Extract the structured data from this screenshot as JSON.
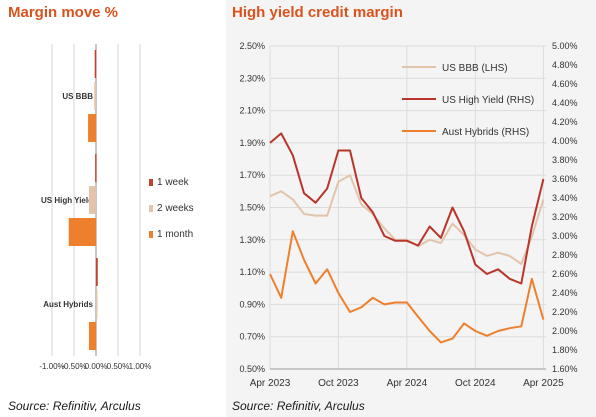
{
  "left": {
    "title": "Margin move %",
    "source": "Source: Refinitiv, Arculus"
  },
  "right": {
    "title": "High yield credit margin",
    "source": "Source: Refinitiv, Arculus"
  },
  "colors": {
    "title": "#d9531e",
    "one_week": "#c0432a",
    "two_weeks": "#e2c4aa",
    "one_month": "#ee7f2d",
    "us_bbb": "#e2c4aa",
    "us_high_yield": "#b8352a",
    "aust_hybrids": "#ee7f2d"
  },
  "chart_data": [
    {
      "type": "bar",
      "orientation": "horizontal",
      "title": "Margin move %",
      "categories": [
        "US BBB",
        "US High Yield",
        "Aust Hybrids"
      ],
      "series": [
        {
          "name": "1 week",
          "values": [
            -0.03,
            -0.02,
            0.04
          ]
        },
        {
          "name": "2 weeks",
          "values": [
            -0.04,
            -0.16,
            0.03
          ]
        },
        {
          "name": "1 month",
          "values": [
            -0.18,
            -0.62,
            -0.16
          ]
        }
      ],
      "xlim": [
        -1.0,
        1.0
      ],
      "xticks": [
        "-1.00%",
        "-0.50%",
        "0.00%",
        "0.50%",
        "1.00%"
      ],
      "grid": true,
      "legend": "right"
    },
    {
      "type": "line",
      "title": "High yield credit margin",
      "x_range": [
        "2023-04",
        "2025-04"
      ],
      "xticks": [
        "Apr 2023",
        "Oct 2023",
        "Apr 2024",
        "Oct 2024",
        "Apr 2025"
      ],
      "y_left_ticks": [
        "0.50%",
        "0.70%",
        "0.90%",
        "1.10%",
        "1.30%",
        "1.50%",
        "1.70%",
        "1.90%",
        "2.10%",
        "2.30%",
        "2.50%"
      ],
      "y_right_ticks": [
        "1.60%",
        "1.80%",
        "2.00%",
        "2.20%",
        "2.40%",
        "2.60%",
        "2.80%",
        "3.00%",
        "3.20%",
        "3.40%",
        "3.60%",
        "3.80%",
        "4.00%",
        "4.20%",
        "4.40%",
        "4.60%",
        "4.80%",
        "5.00%"
      ],
      "ylim_left": [
        0.5,
        2.5
      ],
      "ylim_right": [
        1.6,
        5.0
      ],
      "grid": true,
      "legend": "top-right",
      "series": [
        {
          "name": "US BBB (LHS)",
          "axis": "left",
          "x": [
            "2023-04",
            "2023-05",
            "2023-06",
            "2023-07",
            "2023-08",
            "2023-09",
            "2023-10",
            "2023-11",
            "2023-12",
            "2024-01",
            "2024-02",
            "2024-03",
            "2024-04",
            "2024-05",
            "2024-06",
            "2024-07",
            "2024-08",
            "2024-09",
            "2024-10",
            "2024-11",
            "2024-12",
            "2025-01",
            "2025-02",
            "2025-03",
            "2025-04"
          ],
          "values": [
            1.57,
            1.6,
            1.55,
            1.46,
            1.45,
            1.45,
            1.66,
            1.7,
            1.52,
            1.46,
            1.37,
            1.3,
            1.3,
            1.26,
            1.3,
            1.28,
            1.4,
            1.33,
            1.24,
            1.2,
            1.22,
            1.2,
            1.15,
            1.32,
            1.55
          ]
        },
        {
          "name": "US High Yield (RHS)",
          "axis": "right",
          "x": [
            "2023-04",
            "2023-05",
            "2023-06",
            "2023-07",
            "2023-08",
            "2023-09",
            "2023-10",
            "2023-11",
            "2023-12",
            "2024-01",
            "2024-02",
            "2024-03",
            "2024-04",
            "2024-05",
            "2024-06",
            "2024-07",
            "2024-08",
            "2024-09",
            "2024-10",
            "2024-11",
            "2024-12",
            "2025-01",
            "2025-02",
            "2025-03",
            "2025-04"
          ],
          "values": [
            3.98,
            4.08,
            3.85,
            3.45,
            3.35,
            3.5,
            3.9,
            3.9,
            3.4,
            3.25,
            3.0,
            2.95,
            2.95,
            2.9,
            3.1,
            2.98,
            3.3,
            3.05,
            2.7,
            2.6,
            2.65,
            2.55,
            2.5,
            3.1,
            3.6
          ]
        },
        {
          "name": "Aust Hybrids (RHS)",
          "axis": "right",
          "x": [
            "2023-04",
            "2023-05",
            "2023-06",
            "2023-07",
            "2023-08",
            "2023-09",
            "2023-10",
            "2023-11",
            "2023-12",
            "2024-01",
            "2024-02",
            "2024-03",
            "2024-04",
            "2024-05",
            "2024-06",
            "2024-07",
            "2024-08",
            "2024-09",
            "2024-10",
            "2024-11",
            "2024-12",
            "2025-01",
            "2025-02",
            "2025-03",
            "2025-04"
          ],
          "values": [
            2.6,
            2.35,
            3.05,
            2.75,
            2.5,
            2.65,
            2.4,
            2.2,
            2.25,
            2.35,
            2.28,
            2.3,
            2.3,
            2.15,
            2.0,
            1.88,
            1.92,
            2.08,
            2.0,
            1.95,
            2.0,
            2.03,
            2.05,
            2.55,
            2.12
          ]
        }
      ]
    }
  ]
}
